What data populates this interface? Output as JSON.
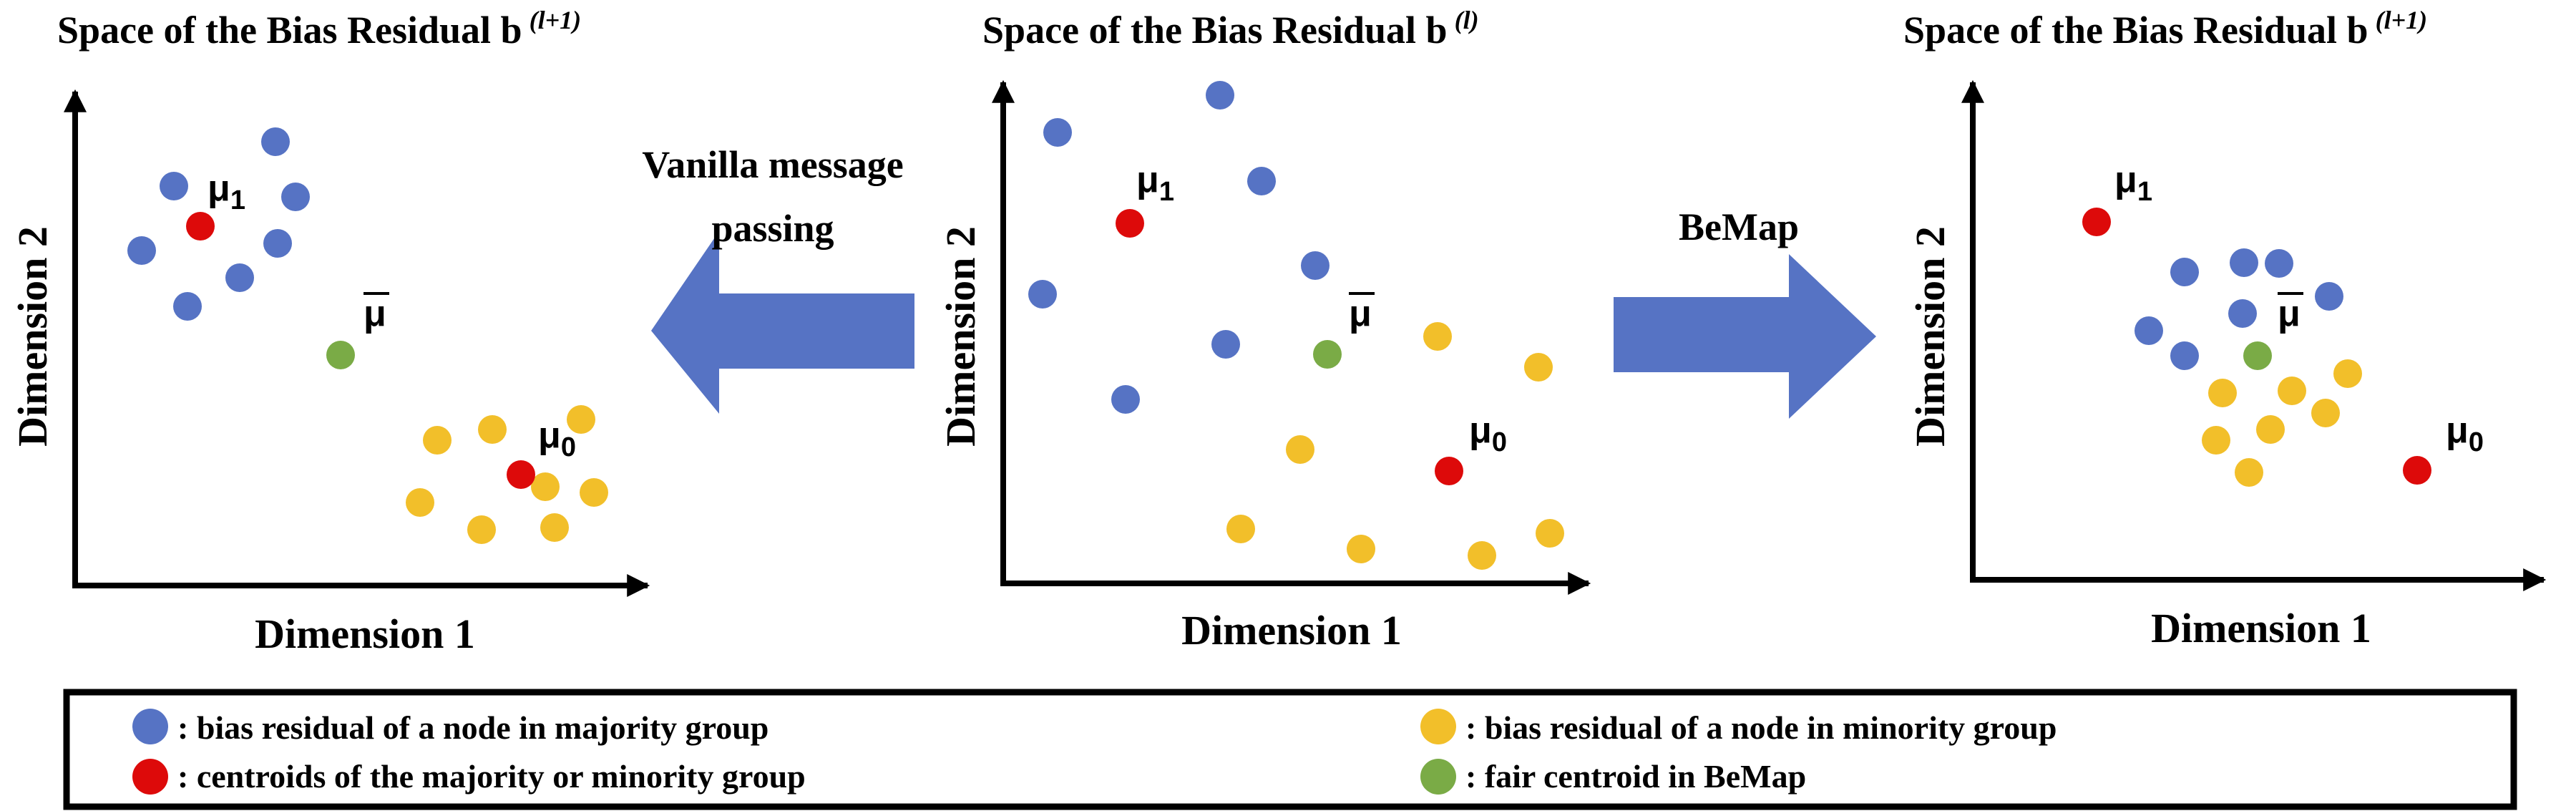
{
  "colors": {
    "majority": "#5673C4",
    "minority": "#F2BF2A",
    "centroid": "#DD0A0A",
    "fair": "#7AAB46",
    "arrow": "#5673C4"
  },
  "panels": {
    "left": {
      "title": "Space of the Bias Residual b",
      "title_sup": "(l+1)",
      "xlabel": "Dimension 1",
      "ylabel": "Dimension 2",
      "mu1": "μ",
      "mu1_sub": "1",
      "mu0": "μ",
      "mu0_sub": "0",
      "mubar": "μ"
    },
    "middle": {
      "title": "Space of the Bias Residual b",
      "title_sup": "(l)",
      "xlabel": "Dimension 1",
      "ylabel": "Dimension 2",
      "mu1": "μ",
      "mu1_sub": "1",
      "mu0": "μ",
      "mu0_sub": "0",
      "mubar": "μ"
    },
    "right": {
      "title": "Space of the Bias Residual b",
      "title_sup": "(l+1)",
      "xlabel": "Dimension 1",
      "ylabel": "Dimension 2",
      "mu1": "μ",
      "mu1_sub": "1",
      "mu0": "μ",
      "mu0_sub": "0",
      "mubar": "μ"
    }
  },
  "arrows": {
    "left_label_line1": "Vanilla message",
    "left_label_line2": "passing",
    "right_label": "BeMap"
  },
  "legend": {
    "majority": ": bias residual of a node in majority group",
    "centroids": ": centroids of the majority or minority group",
    "minority": ": bias residual of a node in minority group",
    "fair": ": fair centroid in BeMap"
  }
}
